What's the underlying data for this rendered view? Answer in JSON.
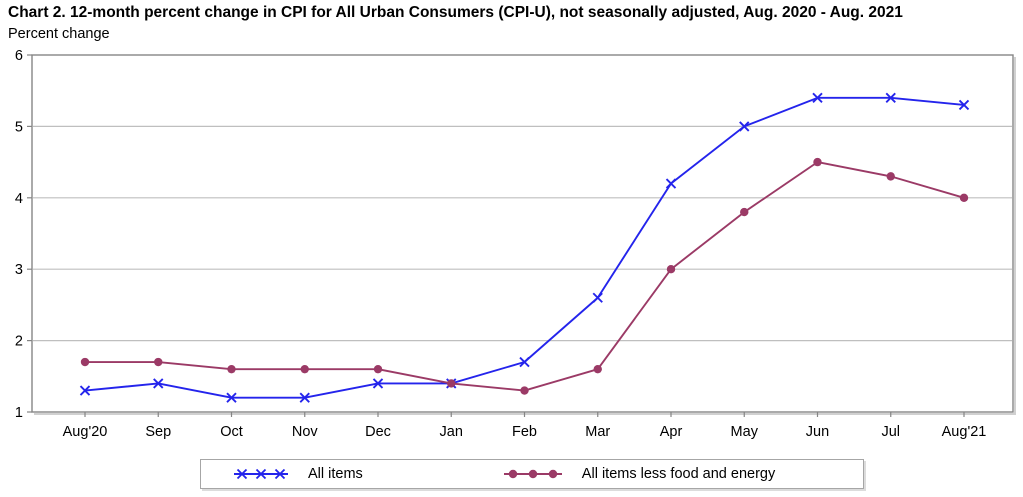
{
  "title": "Chart 2. 12-month percent change in CPI for All Urban Consumers (CPI-U), not seasonally adjusted, Aug. 2020 - Aug. 2021",
  "y_axis_label": "Percent change",
  "chart_data": {
    "type": "line",
    "title": "Chart 2. 12-month percent change in CPI for All Urban Consumers (CPI-U), not seasonally adjusted, Aug. 2020 - Aug. 2021",
    "xlabel": "",
    "ylabel": "Percent change",
    "categories": [
      "Aug'20",
      "Sep",
      "Oct",
      "Nov",
      "Dec",
      "Jan",
      "Feb",
      "Mar",
      "Apr",
      "May",
      "Jun",
      "Jul",
      "Aug'21"
    ],
    "y_ticks": [
      1,
      2,
      3,
      4,
      5,
      6
    ],
    "ylim": [
      1,
      6
    ],
    "grid": "horizontal",
    "legend_position": "bottom",
    "series": [
      {
        "name": "All items",
        "marker": "x",
        "color": "#2424ec",
        "values": [
          1.3,
          1.4,
          1.2,
          1.2,
          1.4,
          1.4,
          1.7,
          2.6,
          4.2,
          5.0,
          5.4,
          5.4,
          5.3
        ]
      },
      {
        "name": "All items less food and energy",
        "marker": "circle",
        "color": "#9b3a66",
        "values": [
          1.7,
          1.7,
          1.6,
          1.6,
          1.6,
          1.4,
          1.3,
          1.6,
          3.0,
          3.8,
          4.5,
          4.3,
          4.0
        ]
      }
    ]
  },
  "colors": {
    "grid": "#bfbfbf",
    "frame": "#858585",
    "frame_shadow": "#d0d0d0",
    "text": "#000000",
    "background": "#ffffff"
  }
}
